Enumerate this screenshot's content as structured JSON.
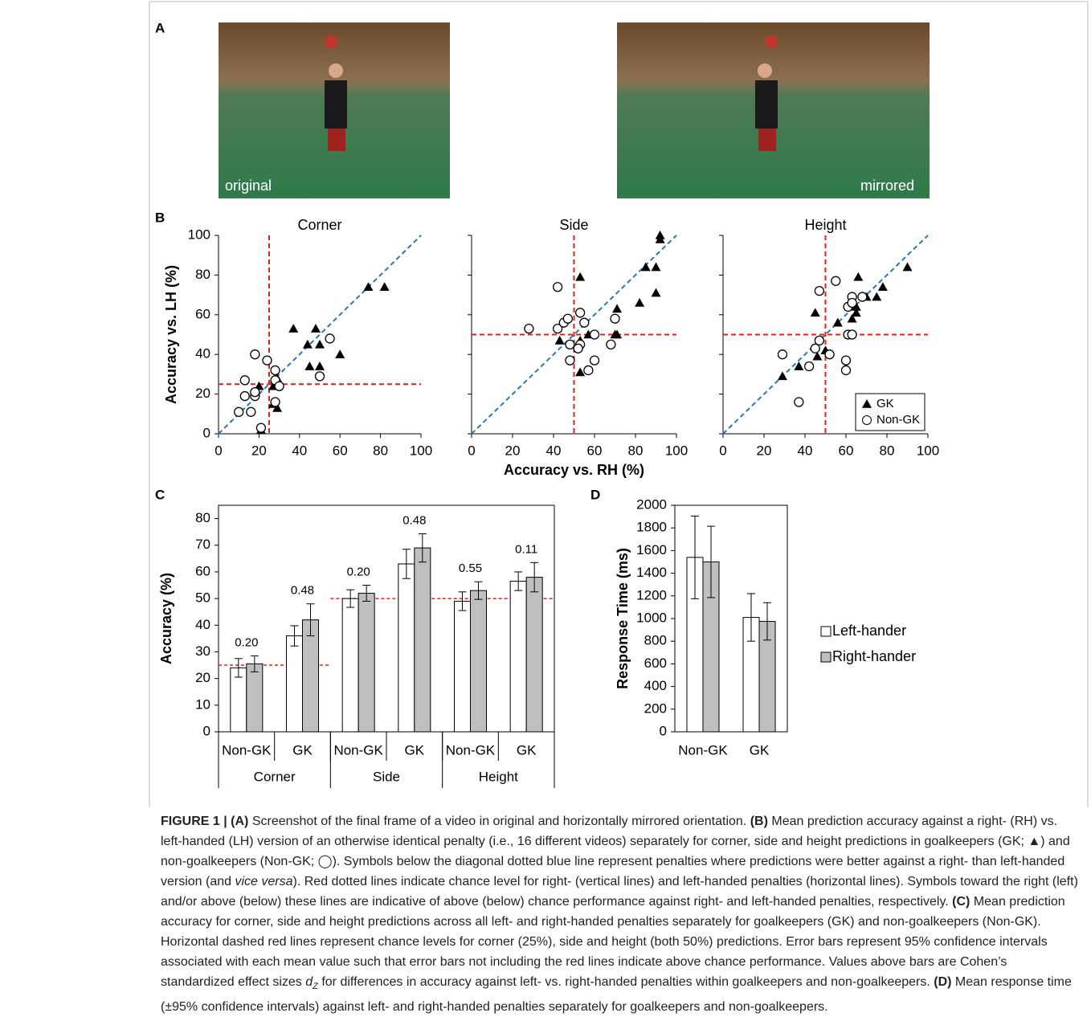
{
  "panel_labels": [
    "A",
    "B",
    "C",
    "D"
  ],
  "images": [
    "original",
    "mirrored"
  ],
  "chart_data": [
    {
      "type": "scatter",
      "title": "Corner",
      "ylabel": "Accuracy vs. LH (%)",
      "xlim": [
        0,
        100
      ],
      "ylim": [
        0,
        100
      ],
      "xticks": [
        0,
        20,
        40,
        60,
        80,
        100
      ],
      "yticks": [
        0,
        20,
        40,
        60,
        80,
        100
      ],
      "ytick_labels": true,
      "vline": 25,
      "hline": 25,
      "diagonal": true,
      "series": [
        {
          "marker": "triangle",
          "color": "#000000",
          "x": [
            20,
            27,
            27,
            29,
            29,
            37,
            44,
            45,
            48,
            50,
            50,
            60,
            74,
            82,
            21
          ],
          "y": [
            24,
            24,
            15,
            28,
            13,
            53,
            45,
            34,
            53,
            45,
            34,
            40,
            74,
            74,
            2
          ]
        },
        {
          "marker": "circle",
          "color": "#000000",
          "x": [
            10,
            13,
            13,
            16,
            18,
            18,
            18,
            24,
            28,
            28,
            28,
            30,
            50,
            55,
            21
          ],
          "y": [
            11,
            27,
            19,
            11,
            19,
            40,
            21,
            37,
            32,
            27,
            16,
            24,
            29,
            48,
            3
          ]
        }
      ]
    },
    {
      "type": "scatter",
      "title": "Side",
      "xlabel": "Accuracy vs. RH (%)",
      "xlim": [
        0,
        100
      ],
      "ylim": [
        0,
        100
      ],
      "xticks": [
        0,
        20,
        40,
        60,
        80,
        100
      ],
      "yticks": [
        0,
        20,
        40,
        60,
        80,
        100
      ],
      "ytick_labels": false,
      "vline": 50,
      "hline": 50,
      "diagonal": true,
      "series": [
        {
          "marker": "triangle",
          "color": "#000000",
          "x": [
            53,
            92,
            92,
            43,
            53,
            53,
            57,
            70,
            71,
            71,
            82,
            85,
            90,
            90
          ],
          "y": [
            79,
            100,
            98,
            47,
            47,
            31,
            50,
            50,
            63,
            50,
            66,
            84,
            84,
            71
          ]
        },
        {
          "marker": "circle",
          "color": "#000000",
          "x": [
            28,
            42,
            42,
            45,
            47,
            48,
            48,
            53,
            53,
            52,
            55,
            57,
            60,
            60,
            68,
            70
          ],
          "y": [
            53,
            74,
            53,
            56,
            58,
            37,
            45,
            61,
            45,
            43,
            56,
            32,
            50,
            37,
            45,
            58
          ]
        }
      ]
    },
    {
      "type": "scatter",
      "title": "Height",
      "xlim": [
        0,
        100
      ],
      "ylim": [
        0,
        100
      ],
      "xticks": [
        0,
        20,
        40,
        60,
        80,
        100
      ],
      "yticks": [
        0,
        20,
        40,
        60,
        80,
        100
      ],
      "ytick_labels": false,
      "vline": 50,
      "hline": 50,
      "diagonal": true,
      "legend": "lower right",
      "series": [
        {
          "name": "GK",
          "marker": "triangle",
          "color": "#000000",
          "x": [
            29,
            37,
            45,
            46,
            50,
            56,
            63,
            65,
            66,
            65,
            70,
            75,
            78,
            90
          ],
          "y": [
            29,
            34,
            61,
            39,
            42,
            56,
            58,
            61,
            79,
            64,
            69,
            69,
            74,
            84
          ]
        },
        {
          "name": "Non-GK",
          "marker": "circle",
          "color": "#000000",
          "x": [
            29,
            37,
            42,
            45,
            47,
            47,
            52,
            55,
            60,
            60,
            61,
            61,
            63,
            63,
            68,
            63
          ],
          "y": [
            40,
            16,
            34,
            43,
            72,
            47,
            40,
            77,
            37,
            32,
            50,
            64,
            50,
            69,
            69,
            66
          ]
        }
      ]
    },
    {
      "type": "bar",
      "ylabel": "Accuracy (%)",
      "ylim": [
        0,
        85
      ],
      "yticks": [
        0,
        10,
        20,
        30,
        40,
        50,
        60,
        70,
        80
      ],
      "categories": [
        "Non-GK",
        "GK",
        "Non-GK",
        "GK",
        "Non-GK",
        "GK"
      ],
      "groups": [
        {
          "label": "Corner",
          "chance": 25
        },
        {
          "label": "Side",
          "chance": 50
        },
        {
          "label": "Height",
          "chance": 50
        }
      ],
      "annotations": [
        "0.20",
        "0.48",
        "0.20",
        "0.48",
        "0.55",
        "0.11"
      ],
      "series": [
        {
          "color": "#ffffff",
          "values": [
            24,
            36,
            50,
            63,
            49,
            56.5
          ],
          "errors": [
            3.5,
            3.8,
            3.3,
            5.5,
            3.5,
            3.5
          ]
        },
        {
          "color": "#bfbfbf",
          "values": [
            25.5,
            42,
            52,
            69,
            53,
            58
          ],
          "errors": [
            3,
            6,
            3,
            5.3,
            3.3,
            5.5
          ]
        }
      ]
    },
    {
      "type": "bar",
      "ylabel": "Response Time (ms)",
      "ylim": [
        0,
        2000
      ],
      "yticks": [
        0,
        200,
        400,
        600,
        800,
        1000,
        1200,
        1400,
        1600,
        1800,
        2000
      ],
      "categories": [
        "Non-GK",
        "GK"
      ],
      "legend": "right",
      "series": [
        {
          "name": "Left-hander",
          "color": "#ffffff",
          "values": [
            1540,
            1010
          ],
          "errors": [
            365,
            210
          ]
        },
        {
          "name": "Right-hander",
          "color": "#bfbfbf",
          "values": [
            1500,
            975
          ],
          "errors": [
            315,
            165
          ]
        }
      ]
    }
  ],
  "caption": [
    {
      "t": "FIGURE 1 | (A)",
      "s": "b"
    },
    {
      "t": " Screenshot of the final frame of a video in original and horizontally mirrored orientation. "
    },
    {
      "t": "(B)",
      "s": "b"
    },
    {
      "t": " Mean prediction accuracy against a right- (RH) vs. left-handed (LH) version of an otherwise identical penalty (i.e., 16 different videos) separately for corner, side and height predictions in goalkeepers (GK; ▲) and non-goalkeepers (Non-GK; ◯). Symbols below the diagonal dotted blue line represent penalties where predictions were better against a right- than left-handed version (and "
    },
    {
      "t": "vice versa",
      "s": "i"
    },
    {
      "t": "). Red dotted lines indicate chance level for right- (vertical lines) and left-handed penalties (horizontal lines). Symbols toward the right (left) and/or above (below) these lines are indicative of above (below) chance performance against right- and left-handed penalties, respectively. "
    },
    {
      "t": "(C)",
      "s": "b"
    },
    {
      "t": " Mean prediction accuracy for corner, side and height predictions across all left- and right-handed penalties separately for goalkeepers (GK) and non-goalkeepers (Non-GK). Horizontal dashed red lines represent chance levels for corner (25%), side and height (both 50%) predictions. Error bars represent 95% confidence intervals associated with each mean value such that error bars not including the red lines indicate above chance performance. Values above bars are Cohen’s standardized effect sizes "
    },
    {
      "t": "d",
      "s": "i"
    },
    {
      "t": "Z",
      "s": "sub"
    },
    {
      "t": " for differences in accuracy against left- vs. right-handed penalties within goalkeepers and non-goalkeepers. "
    },
    {
      "t": "(D)",
      "s": "b"
    },
    {
      "t": " Mean response time (±95% confidence intervals) against left- and right-handed penalties separately for goalkeepers and non-goalkeepers."
    }
  ]
}
